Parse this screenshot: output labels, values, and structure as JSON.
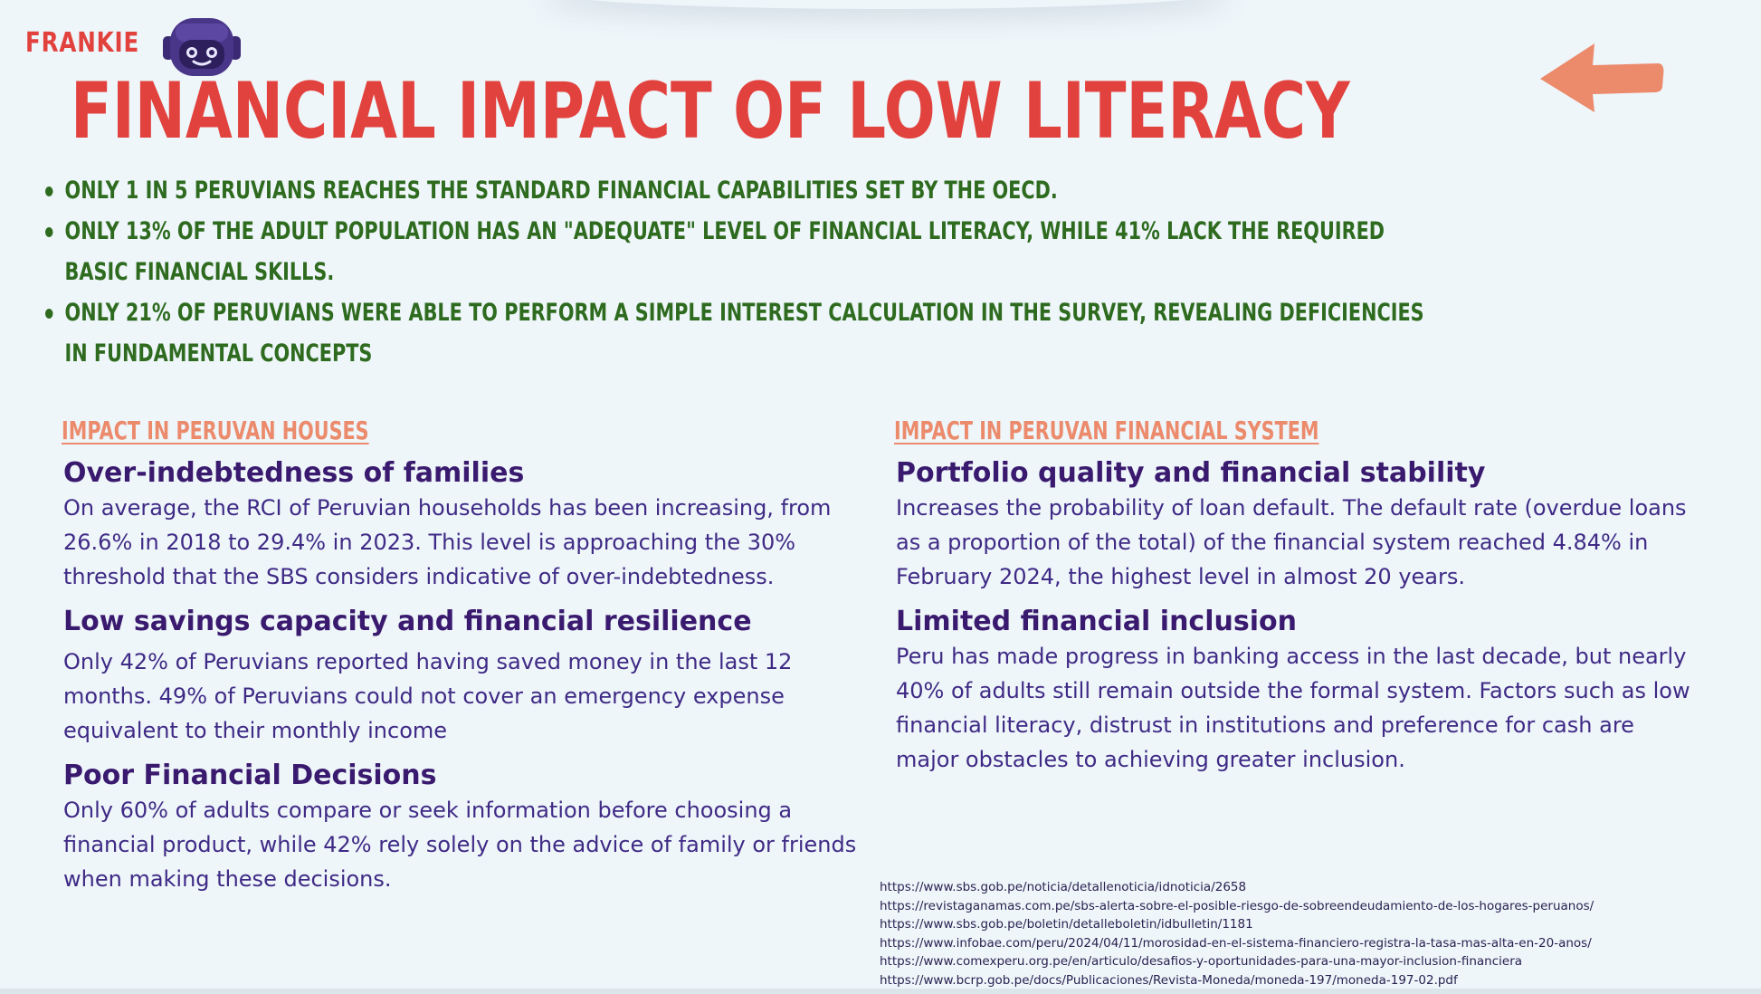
{
  "header": {
    "brand": "FRANKIE",
    "title": "FINANCIAL IMPACT OF LOW LITERACY",
    "back_icon": "back-arrow-icon",
    "mascot_icon": "robot-mascot-icon"
  },
  "bullets": [
    "ONLY 1 IN 5 PERUVIANS REACHES THE STANDARD FINANCIAL CAPABILITIES SET BY THE OECD.",
    "ONLY 13% OF THE ADULT POPULATION HAS AN \"ADEQUATE\" LEVEL OF FINANCIAL LITERACY, WHILE 41% LACK THE REQUIRED BASIC FINANCIAL SKILLS.",
    " ONLY 21% OF PERUVIANS WERE ABLE TO PERFORM A SIMPLE INTEREST CALCULATION IN THE SURVEY, REVEALING DEFICIENCIES IN FUNDAMENTAL CONCEPTS"
  ],
  "left": {
    "heading": "IMPACT IN PERUVAN HOUSES",
    "items": [
      {
        "title": "Over-indebtedness of families",
        "text": "On average, the RCI of Peruvian households has been increasing, from 26.6% in 2018 to 29.4% in 2023. This level is approaching the 30% threshold that the SBS considers indicative of over-indebtedness."
      },
      {
        "title": "Low savings capacity and financial resilience",
        "text": "Only 42% of Peruvians reported having saved money in the last 12 months. 49% of Peruvians could not cover an emergency expense equivalent to their monthly income"
      },
      {
        "title": "Poor Financial Decisions",
        "text": "Only 60% of adults compare or seek information before choosing a financial product, while 42% rely solely on the advice of family or friends when making these decisions."
      }
    ]
  },
  "right": {
    "heading": "IMPACT IN PERUVAN FINANCIAL SYSTEM",
    "items": [
      {
        "title": "Portfolio quality and financial stability",
        "text": "Increases the probability of loan default. The default rate (overdue loans as a proportion of the total) of the financial system reached 4.84% in February 2024, the highest level in almost 20 years."
      },
      {
        "title": "Limited financial inclusion",
        "text": "Peru has made progress in banking access in the last decade, but nearly 40% of adults still remain outside the formal system. Factors such as low financial literacy, distrust in institutions and preference for cash are major obstacles to achieving greater inclusion."
      }
    ]
  },
  "sources": [
    " https://www.sbs.gob.pe/noticia/detallenoticia/idnoticia/2658",
    "https://revistaganamas.com.pe/sbs-alerta-sobre-el-posible-riesgo-de-sobreendeudamiento-de-los-hogares-peruanos/",
    "https://www.sbs.gob.pe/boletin/detalleboletin/idbulletin/1181",
    "https://www.infobae.com/peru/2024/04/11/morosidad-en-el-sistema-financiero-registra-la-tasa-mas-alta-en-20-anos/",
    "https://www.comexperu.org.pe/en/articulo/desafios-y-oportunidades-para-una-mayor-inclusion-financiera",
    "https://www.bcrp.gob.pe/docs/Publicaciones/Revista-Moneda/moneda-197/moneda-197-02.pdf"
  ],
  "colors": {
    "background": "#eef6fa",
    "title": "#e2423e",
    "bullets": "#2e6b1f",
    "section_heading": "#ec8a6c",
    "item_title": "#3a1a6e",
    "item_text": "#3f2a85",
    "arrow": "#ec8a6c"
  }
}
